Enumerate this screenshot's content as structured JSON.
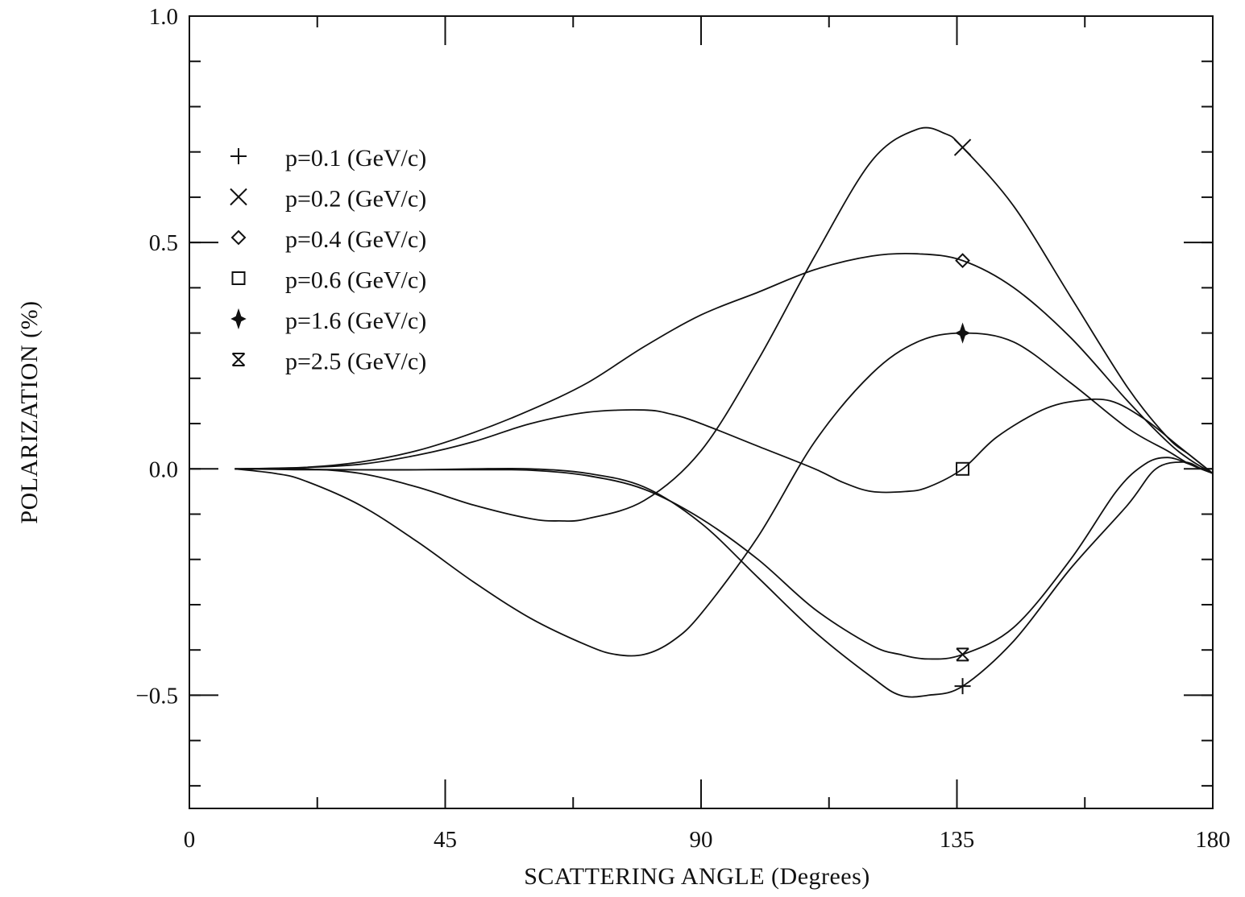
{
  "chart_data": {
    "type": "line",
    "xlabel": "SCATTERING ANGLE (Degrees)",
    "ylabel": "POLARIZATION (%)",
    "xlim": [
      0,
      180
    ],
    "ylim": [
      -0.75,
      1.0
    ],
    "xticks": [
      0,
      45,
      90,
      135,
      180
    ],
    "xtick_labels": [
      "0",
      "45",
      "90",
      "135",
      "180"
    ],
    "yticks": [
      1.0,
      0.5,
      0.0,
      -0.5
    ],
    "ytick_labels": [
      "1.0",
      "0.5",
      "0.0",
      "−0.5"
    ],
    "x_minor_step": 22.5,
    "y_minor_step": 0.1,
    "grid": false,
    "legend_position": "top-left",
    "marker_x": 136,
    "series": [
      {
        "name": "p=0.1 (GeV/c)",
        "marker": "plus",
        "points": [
          [
            8,
            0
          ],
          [
            15,
            -0.001
          ],
          [
            20,
            -0.002
          ],
          [
            30,
            -0.002
          ],
          [
            40,
            -0.002
          ],
          [
            50,
            0
          ],
          [
            60,
            0
          ],
          [
            70,
            -0.01
          ],
          [
            80,
            -0.04
          ],
          [
            90,
            -0.12
          ],
          [
            100,
            -0.24
          ],
          [
            110,
            -0.36
          ],
          [
            120,
            -0.46
          ],
          [
            125,
            -0.5
          ],
          [
            130,
            -0.5
          ],
          [
            136,
            -0.48
          ],
          [
            145,
            -0.38
          ],
          [
            155,
            -0.22
          ],
          [
            165,
            -0.08
          ],
          [
            170,
            0
          ],
          [
            175,
            0.015
          ],
          [
            178,
            0
          ],
          [
            180,
            -0.01
          ]
        ]
      },
      {
        "name": "p=0.2 (GeV/c)",
        "marker": "cross",
        "points": [
          [
            8,
            0
          ],
          [
            20,
            0
          ],
          [
            30,
            -0.01
          ],
          [
            40,
            -0.04
          ],
          [
            50,
            -0.08
          ],
          [
            60,
            -0.11
          ],
          [
            65,
            -0.115
          ],
          [
            70,
            -0.11
          ],
          [
            80,
            -0.07
          ],
          [
            90,
            0.04
          ],
          [
            100,
            0.24
          ],
          [
            110,
            0.47
          ],
          [
            120,
            0.68
          ],
          [
            128,
            0.75
          ],
          [
            133,
            0.74
          ],
          [
            136,
            0.71
          ],
          [
            145,
            0.58
          ],
          [
            155,
            0.38
          ],
          [
            165,
            0.18
          ],
          [
            172,
            0.07
          ],
          [
            176,
            0.03
          ],
          [
            180,
            -0.01
          ]
        ]
      },
      {
        "name": "p=0.4 (GeV/c)",
        "marker": "diamond",
        "points": [
          [
            8,
            0
          ],
          [
            20,
            0.003
          ],
          [
            30,
            0.015
          ],
          [
            40,
            0.04
          ],
          [
            50,
            0.08
          ],
          [
            60,
            0.13
          ],
          [
            70,
            0.19
          ],
          [
            80,
            0.27
          ],
          [
            90,
            0.34
          ],
          [
            100,
            0.39
          ],
          [
            110,
            0.44
          ],
          [
            120,
            0.47
          ],
          [
            128,
            0.475
          ],
          [
            136,
            0.46
          ],
          [
            145,
            0.4
          ],
          [
            155,
            0.29
          ],
          [
            165,
            0.15
          ],
          [
            172,
            0.06
          ],
          [
            176,
            0.02
          ],
          [
            180,
            -0.01
          ]
        ]
      },
      {
        "name": "p=0.6 (GeV/c)",
        "marker": "square",
        "points": [
          [
            8,
            0
          ],
          [
            20,
            0.003
          ],
          [
            30,
            0.01
          ],
          [
            40,
            0.03
          ],
          [
            50,
            0.06
          ],
          [
            60,
            0.1
          ],
          [
            70,
            0.125
          ],
          [
            80,
            0.13
          ],
          [
            85,
            0.12
          ],
          [
            90,
            0.1
          ],
          [
            100,
            0.05
          ],
          [
            110,
            0
          ],
          [
            115,
            -0.03
          ],
          [
            120,
            -0.05
          ],
          [
            126,
            -0.05
          ],
          [
            130,
            -0.04
          ],
          [
            136,
            0
          ],
          [
            142,
            0.07
          ],
          [
            150,
            0.13
          ],
          [
            156,
            0.15
          ],
          [
            162,
            0.15
          ],
          [
            168,
            0.11
          ],
          [
            174,
            0.05
          ],
          [
            180,
            -0.01
          ]
        ]
      },
      {
        "name": "p=1.6 (GeV/c)",
        "marker": "star4",
        "points": [
          [
            8,
            0
          ],
          [
            15,
            -0.01
          ],
          [
            20,
            -0.025
          ],
          [
            30,
            -0.08
          ],
          [
            40,
            -0.16
          ],
          [
            50,
            -0.25
          ],
          [
            60,
            -0.33
          ],
          [
            70,
            -0.39
          ],
          [
            75,
            -0.41
          ],
          [
            80,
            -0.41
          ],
          [
            85,
            -0.38
          ],
          [
            90,
            -0.32
          ],
          [
            100,
            -0.15
          ],
          [
            110,
            0.06
          ],
          [
            120,
            0.21
          ],
          [
            128,
            0.28
          ],
          [
            136,
            0.3
          ],
          [
            145,
            0.28
          ],
          [
            155,
            0.19
          ],
          [
            165,
            0.09
          ],
          [
            172,
            0.04
          ],
          [
            176,
            0.01
          ],
          [
            180,
            -0.01
          ]
        ]
      },
      {
        "name": "p=2.5 (GeV/c)",
        "marker": "bowtie",
        "points": [
          [
            8,
            0
          ],
          [
            20,
            -0.001
          ],
          [
            30,
            -0.002
          ],
          [
            40,
            -0.002
          ],
          [
            50,
            -0.002
          ],
          [
            60,
            -0.003
          ],
          [
            70,
            -0.015
          ],
          [
            80,
            -0.045
          ],
          [
            90,
            -0.11
          ],
          [
            100,
            -0.2
          ],
          [
            110,
            -0.31
          ],
          [
            120,
            -0.39
          ],
          [
            125,
            -0.41
          ],
          [
            130,
            -0.42
          ],
          [
            136,
            -0.41
          ],
          [
            145,
            -0.35
          ],
          [
            155,
            -0.2
          ],
          [
            163,
            -0.05
          ],
          [
            168,
            0.01
          ],
          [
            172,
            0.025
          ],
          [
            176,
            0.01
          ],
          [
            180,
            -0.01
          ]
        ]
      }
    ]
  }
}
